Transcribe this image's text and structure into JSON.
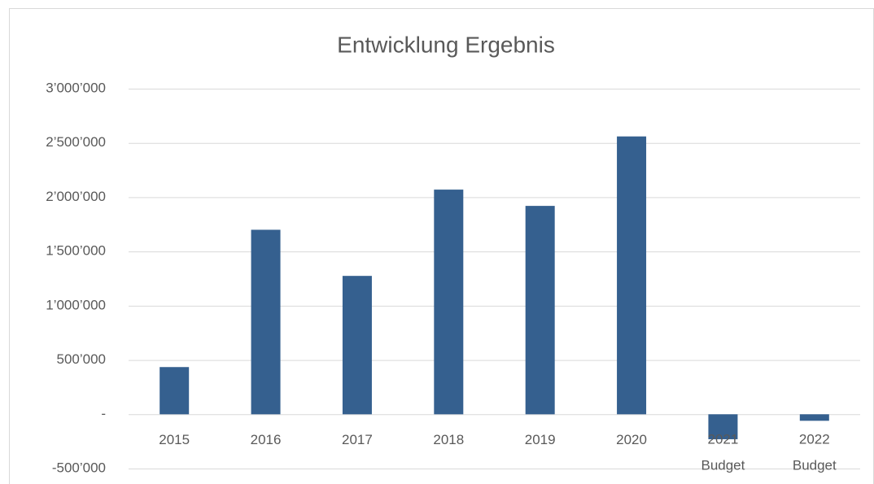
{
  "chart_data": {
    "type": "bar",
    "title": "Entwicklung Ergebnis",
    "categories": [
      "2015",
      "2016",
      "2017",
      "2018",
      "2019",
      "2020",
      "2021 Budget",
      "2022 Budget"
    ],
    "values": [
      435000,
      1700000,
      1275000,
      2070000,
      1920000,
      2560000,
      -230000,
      -60000
    ],
    "color": "#35608f",
    "ylim": [
      -500000,
      3000000
    ],
    "yticks": [
      {
        "value": -500000,
        "label": "-500’000"
      },
      {
        "value": 0,
        "label": "-"
      },
      {
        "value": 500000,
        "label": "500’000"
      },
      {
        "value": 1000000,
        "label": "1’000’000"
      },
      {
        "value": 1500000,
        "label": "1’500’000"
      },
      {
        "value": 2000000,
        "label": "2’000’000"
      },
      {
        "value": 2500000,
        "label": "2’500’000"
      },
      {
        "value": 3000000,
        "label": "3’000’000"
      }
    ],
    "grid": true
  }
}
